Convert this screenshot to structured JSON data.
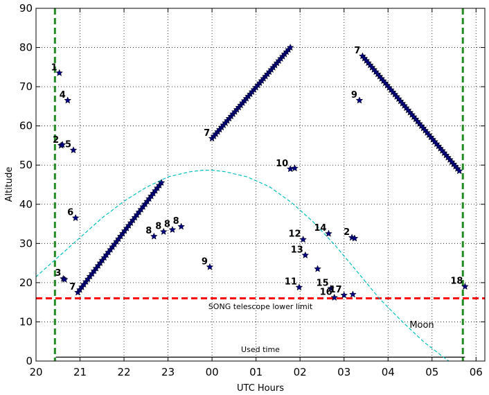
{
  "chart_data": {
    "type": "scatter",
    "xlabel": "UTC Hours",
    "ylabel": "Altitude",
    "xlim": [
      20,
      30.2
    ],
    "ylim": [
      0,
      90
    ],
    "x_ticks": [
      {
        "value": 20,
        "label": "20"
      },
      {
        "value": 21,
        "label": "21"
      },
      {
        "value": 22,
        "label": "22"
      },
      {
        "value": 23,
        "label": "23"
      },
      {
        "value": 24,
        "label": "00"
      },
      {
        "value": 25,
        "label": "01"
      },
      {
        "value": 26,
        "label": "02"
      },
      {
        "value": 27,
        "label": "03"
      },
      {
        "value": 28,
        "label": "04"
      },
      {
        "value": 29,
        "label": "05"
      },
      {
        "value": 30,
        "label": "06"
      }
    ],
    "y_ticks": [
      {
        "value": 0,
        "label": "0"
      },
      {
        "value": 10,
        "label": "10"
      },
      {
        "value": 20,
        "label": "20"
      },
      {
        "value": 30,
        "label": "30"
      },
      {
        "value": 40,
        "label": "40"
      },
      {
        "value": 50,
        "label": "50"
      },
      {
        "value": 60,
        "label": "60"
      },
      {
        "value": 70,
        "label": "70"
      },
      {
        "value": 80,
        "label": "80"
      },
      {
        "value": 90,
        "label": "90"
      }
    ],
    "grid": true,
    "colors": {
      "marker": "#000080",
      "night_limits": "#228B22",
      "lower_limit": "#ff0000",
      "moon": "#00bfbf",
      "used_time": "#000000"
    },
    "lower_limit": {
      "y": 16,
      "label": "SONG telescope lower limit"
    },
    "night_limits": [
      20.43,
      29.7
    ],
    "used_time": {
      "x": [
        20.45,
        29.75
      ],
      "y": 1,
      "label": "Used time"
    },
    "moon": {
      "label": "Moon",
      "x": [
        19.9,
        20.5,
        21.0,
        21.5,
        22.0,
        22.5,
        23.0,
        23.5,
        23.8,
        24.0,
        24.3,
        24.8,
        25.3,
        25.8,
        26.3,
        26.8,
        27.3,
        27.8,
        28.3,
        28.8,
        29.2,
        29.5,
        29.7
      ],
      "y": [
        20.5,
        26.5,
        31.5,
        36.5,
        40.8,
        44.3,
        47.0,
        48.3,
        48.7,
        48.7,
        48.3,
        47.0,
        44.5,
        40.5,
        35.5,
        29.5,
        22.8,
        16.0,
        10.3,
        5.0,
        1.5,
        -1.0,
        -3.0
      ]
    },
    "tracks": [
      {
        "label": "7",
        "x0": 20.95,
        "y0": 17.5,
        "x1": 22.85,
        "y1": 45.5,
        "n": 42
      },
      {
        "label": "7",
        "x0": 24.0,
        "y0": 56.8,
        "x1": 25.78,
        "y1": 80.0,
        "n": 42
      },
      {
        "label": "7",
        "x0": 27.42,
        "y0": 77.8,
        "x1": 29.62,
        "y1": 48.5,
        "n": 52
      }
    ],
    "points": [
      {
        "label": "1",
        "x": 20.53,
        "y": 73.5
      },
      {
        "label": "4",
        "x": 20.72,
        "y": 66.5
      },
      {
        "label": "2",
        "x": 20.57,
        "y": 55.0
      },
      {
        "label": "",
        "x": 20.6,
        "y": 55.2
      },
      {
        "label": "5",
        "x": 20.85,
        "y": 53.8
      },
      {
        "label": "6",
        "x": 20.9,
        "y": 36.5
      },
      {
        "label": "3",
        "x": 20.62,
        "y": 21.0
      },
      {
        "label": "",
        "x": 20.65,
        "y": 20.8
      },
      {
        "label": "8",
        "x": 22.68,
        "y": 31.8
      },
      {
        "label": "8",
        "x": 22.9,
        "y": 33.0
      },
      {
        "label": "8",
        "x": 23.1,
        "y": 33.5
      },
      {
        "label": "8",
        "x": 23.3,
        "y": 34.3
      },
      {
        "label": "9",
        "x": 23.95,
        "y": 24.0
      },
      {
        "label": "10",
        "x": 25.78,
        "y": 49.0
      },
      {
        "label": "",
        "x": 25.88,
        "y": 49.2
      },
      {
        "label": "11",
        "x": 25.98,
        "y": 18.8
      },
      {
        "label": "12",
        "x": 26.07,
        "y": 31.0
      },
      {
        "label": "13",
        "x": 26.12,
        "y": 27.0
      },
      {
        "label": "",
        "x": 26.4,
        "y": 23.5
      },
      {
        "label": "14",
        "x": 26.65,
        "y": 32.5
      },
      {
        "label": "15",
        "x": 26.7,
        "y": 18.5
      },
      {
        "label": "16",
        "x": 26.78,
        "y": 16.2
      },
      {
        "label": "17",
        "x": 27.0,
        "y": 16.8
      },
      {
        "label": "",
        "x": 27.2,
        "y": 17.0
      },
      {
        "label": "2",
        "x": 27.18,
        "y": 31.5
      },
      {
        "label": "",
        "x": 27.24,
        "y": 31.3
      },
      {
        "label": "9",
        "x": 27.35,
        "y": 66.5
      },
      {
        "label": "18",
        "x": 29.75,
        "y": 19.0
      }
    ]
  }
}
